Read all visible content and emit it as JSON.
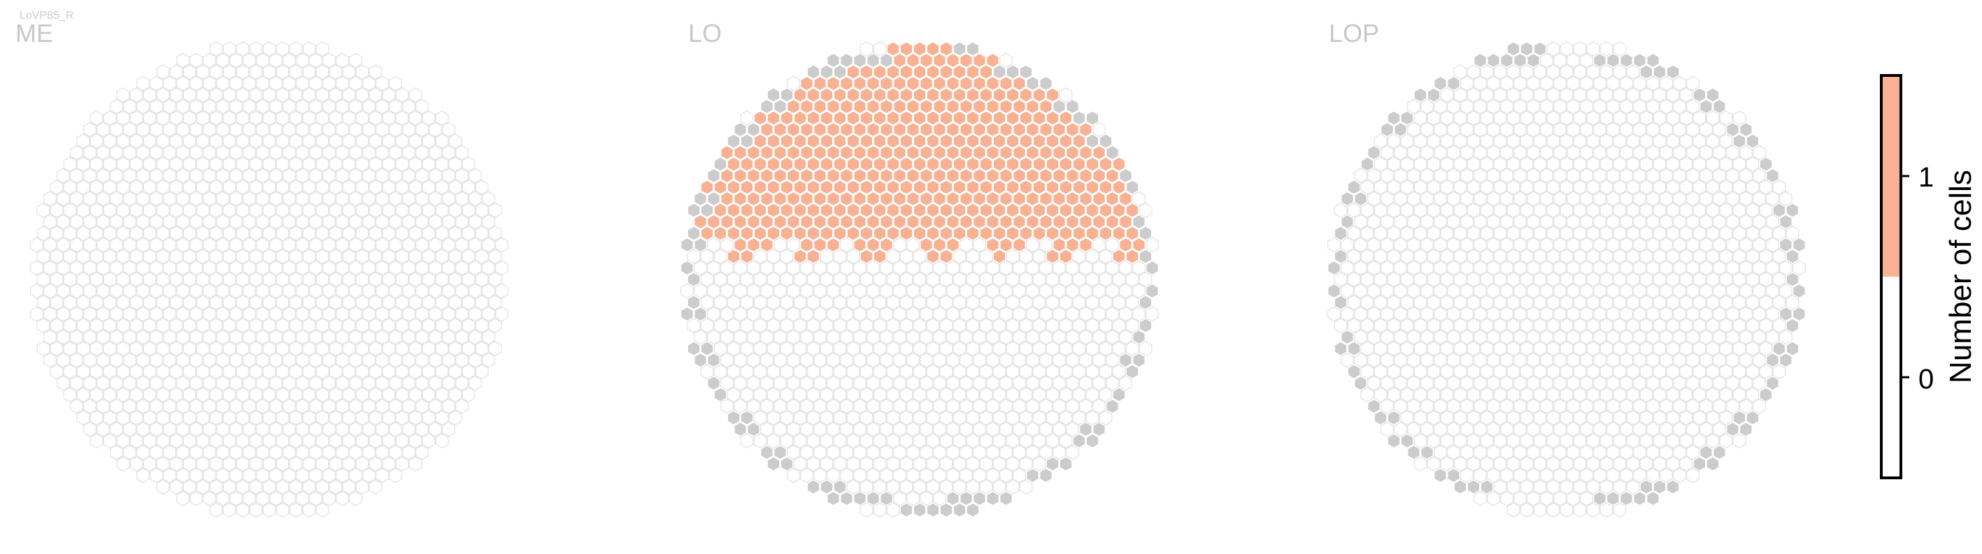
{
  "chart_data": {
    "type": "heatmap",
    "cell_type_label": "LoVP85_R",
    "panels": [
      {
        "name": "ME",
        "grid": {
          "hex_radius_cells": 18
        },
        "counts": "all 0",
        "highlighted": [],
        "outside_grid": []
      },
      {
        "name": "LO",
        "grid": {
          "hex_radius_cells": 18
        },
        "counts": "1 in upper region",
        "highlighted": "upper ~55% of grid",
        "outside_grid": "several grey cells on rim"
      },
      {
        "name": "LOP",
        "grid": {
          "hex_radius_cells": 18
        },
        "counts": "all 0",
        "highlighted": [],
        "outside_grid": "grey cells around rim"
      }
    ],
    "colorbar": {
      "label": "Number of cells",
      "ticks": [
        0,
        1
      ],
      "range": [
        -0.5,
        1.5
      ],
      "colors": [
        {
          "value": 0,
          "color": "#ffffff"
        },
        {
          "value": 1,
          "color": "#f9b193"
        }
      ]
    },
    "colors": {
      "empty_cell_stroke": "#e6e6e6",
      "filled_cell": "#f9b193",
      "filled_cell_stroke": "#ffffff",
      "outside_cell": "#cccccc",
      "panel_label": "#c8c8c8"
    }
  }
}
